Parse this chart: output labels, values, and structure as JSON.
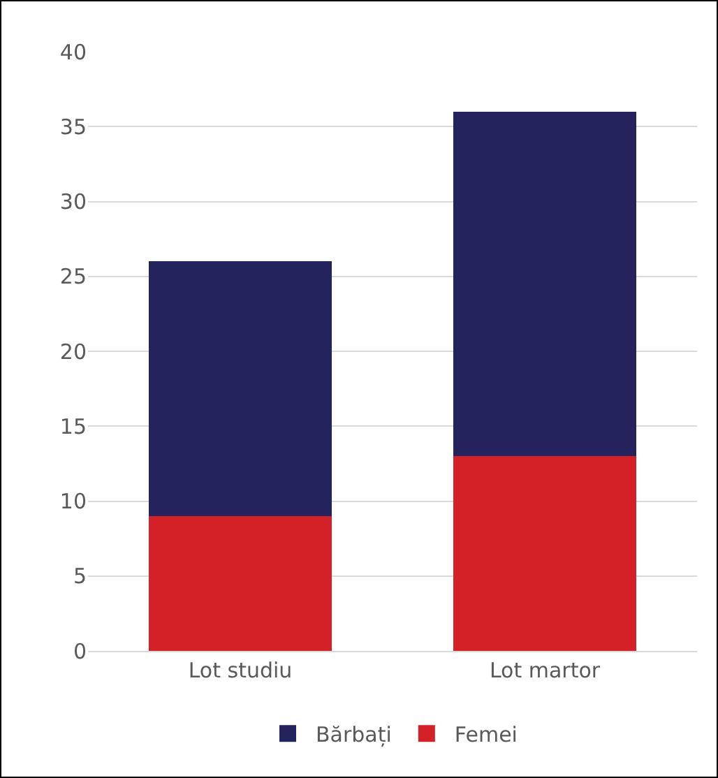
{
  "chart_data": {
    "type": "bar",
    "stacked": true,
    "categories": [
      "Lot studiu",
      "Lot martor"
    ],
    "series": [
      {
        "name": "Femei",
        "color": "#d42027",
        "values": [
          9,
          13
        ]
      },
      {
        "name": "Bărbați",
        "color": "#24235e",
        "values": [
          17,
          23
        ]
      }
    ],
    "ylim": [
      0,
      40
    ],
    "yticks": [
      0,
      5,
      10,
      15,
      20,
      25,
      30,
      35,
      40
    ],
    "grid": "y",
    "legend": "bottom"
  }
}
